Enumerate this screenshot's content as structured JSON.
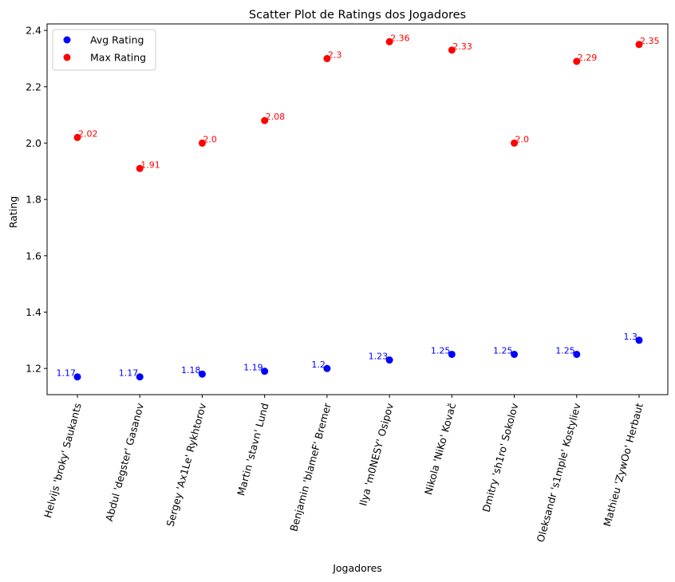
{
  "chart_data": {
    "type": "scatter",
    "title": "Scatter Plot de Ratings dos Jogadores",
    "xlabel": "Jogadores",
    "ylabel": "Rating",
    "categories": [
      "Helvijs 'broky' Saukants",
      "Abdul 'degster' Gasanov",
      "Sergey 'Ax1Le' Rykhtorov",
      "Martin 'stavn' Lund",
      "Benjamin 'blameF' Bremer",
      "Ilya 'm0NESY' Osipov",
      "Nikola 'NiKo' Kovač",
      "Dmitry 'sh1ro' Sokolov",
      "Oleksandr 's1mple' Kostyliev",
      "Mathieu 'ZywOo' Herbaut"
    ],
    "series": [
      {
        "name": "Avg Rating",
        "color": "#0000ff",
        "values": [
          1.17,
          1.17,
          1.18,
          1.19,
          1.2,
          1.23,
          1.25,
          1.25,
          1.25,
          1.3
        ],
        "labels": [
          "1.17",
          "1.17",
          "1.18",
          "1.19",
          "1.2",
          "1.23",
          "1.25",
          "1.25",
          "1.25",
          "1.3"
        ]
      },
      {
        "name": "Max Rating",
        "color": "#ff0000",
        "values": [
          2.02,
          1.91,
          2.0,
          2.08,
          2.3,
          2.36,
          2.33,
          2.0,
          2.29,
          2.35
        ],
        "labels": [
          "2.02",
          "1.91",
          "2.0",
          "2.08",
          "2.3",
          "2.36",
          "2.33",
          "2.0",
          "2.29",
          "2.35"
        ]
      }
    ],
    "ylim": [
      1.107,
      2.423
    ],
    "yticks": [
      1.2,
      1.4,
      1.6,
      1.8,
      2.0,
      2.2,
      2.4
    ],
    "ytick_labels": [
      "1.2",
      "1.4",
      "1.6",
      "1.8",
      "2.0",
      "2.2",
      "2.4"
    ],
    "grid": false,
    "legend_position": "top-left"
  }
}
